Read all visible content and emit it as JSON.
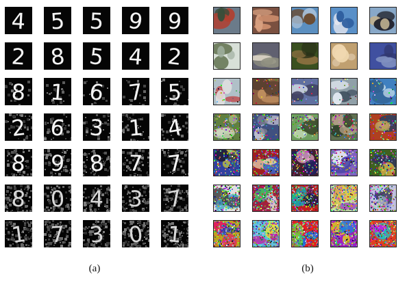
{
  "figure": {
    "panels": [
      {
        "id": "a",
        "caption": "(a)",
        "dataset_kind": "grayscale-digits",
        "rows": 7,
        "cols": 5,
        "digit_glyphs": [
          [
            "4",
            "5",
            "5",
            "9",
            "9"
          ],
          [
            "2",
            "8",
            "5",
            "4",
            "2"
          ],
          [
            "8",
            "1",
            "6",
            "7",
            "5"
          ],
          [
            "2",
            "6",
            "3",
            "1",
            "4"
          ],
          [
            "8",
            "9",
            "8",
            "7",
            "7"
          ],
          [
            "8",
            "0",
            "4",
            "3",
            "7"
          ],
          [
            "1",
            "7",
            "3",
            "0",
            "1"
          ]
        ],
        "noise_level_by_row": [
          0,
          0,
          0.15,
          0.3,
          0.45,
          0.6,
          0.75
        ]
      },
      {
        "id": "b",
        "caption": "(b)",
        "dataset_kind": "color-natural-images",
        "rows": 7,
        "cols": 5,
        "noise_level_by_row": [
          0,
          0,
          0.1,
          0.3,
          0.5,
          0.7,
          0.85
        ],
        "palettes": [
          [
            [
              "#6b7b8a",
              "#b24030",
              "#3a4d3a"
            ],
            [
              "#7a5040",
              "#c88a6a",
              "#d8a080"
            ],
            [
              "#5b8fc0",
              "#6a4a30",
              "#a8c0d8"
            ],
            [
              "#5a90c8",
              "#e8e8f0",
              "#3060a0"
            ],
            [
              "#88a8c8",
              "#20202a",
              "#c0b090"
            ]
          ],
          [
            [
              "#d8e0d8",
              "#708060",
              "#a0b0a0"
            ],
            [
              "#606070",
              "#e8e0d0",
              "#909080"
            ],
            [
              "#3a5020",
              "#8a7040",
              "#2a3018"
            ],
            [
              "#c0a070",
              "#d8c0a0",
              "#f0d8b0"
            ],
            [
              "#4050a0",
              "#303870",
              "#8090c0"
            ]
          ],
          [
            [
              "#b0c0c8",
              "#c04040",
              "#e0e0e0"
            ],
            [
              "#8a6040",
              "#c09060",
              "#5a4030"
            ],
            [
              "#6070a0",
              "#c0c8d8",
              "#404060"
            ],
            [
              "#90a0a8",
              "#405060",
              "#e0e8f0"
            ],
            [
              "#4080c0",
              "#c0d8e8",
              "#306090"
            ]
          ],
          [
            [
              "#608040",
              "#a0b080",
              "#d0d8c0"
            ],
            [
              "#405080",
              "#c0c0d0",
              "#808090"
            ],
            [
              "#70a060",
              "#d0e0c0",
              "#405030"
            ],
            [
              "#607050",
              "#c0a890",
              "#30402a"
            ],
            [
              "#b04020",
              "#304060",
              "#c0a060"
            ]
          ],
          [
            [
              "#3040a0",
              "#c0c040",
              "#202040"
            ],
            [
              "#a02020",
              "#4060c0",
              "#e0c0a0"
            ],
            [
              "#402030",
              "#e0a0c0",
              "#202060"
            ],
            [
              "#8060c0",
              "#e0e0f0",
              "#4040a0"
            ],
            [
              "#406020",
              "#303060",
              "#c0a040"
            ]
          ],
          [
            [
              "#e0e0e0",
              "#40a0c0",
              "#404040"
            ],
            [
              "#a02040",
              "#40c060",
              "#e0e0e0"
            ],
            [
              "#c02020",
              "#20a0a0",
              "#202040"
            ],
            [
              "#c0e0a0",
              "#a040c0",
              "#e0c040"
            ],
            [
              "#c0c0e0",
              "#404060",
              "#a0a0c0"
            ]
          ],
          [
            [
              "#c0a020",
              "#2040c0",
              "#e02060"
            ],
            [
              "#60c0e0",
              "#e0e040",
              "#c020a0"
            ],
            [
              "#e02020",
              "#2060e0",
              "#60e040"
            ],
            [
              "#a020c0",
              "#e0c020",
              "#2080e0"
            ],
            [
              "#e04020",
              "#20c0c0",
              "#c020e0"
            ]
          ]
        ]
      }
    ]
  }
}
